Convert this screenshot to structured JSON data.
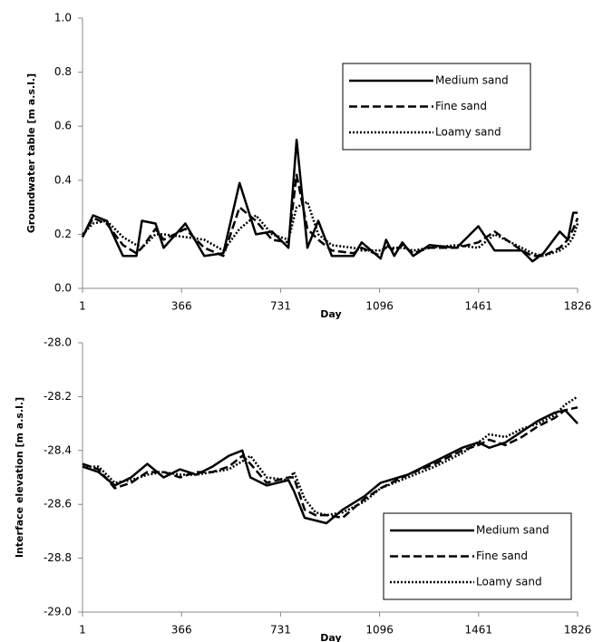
{
  "chart_data": [
    {
      "type": "line",
      "xlabel": "Day",
      "ylabel": "Groundwater table [m a.s.l.]",
      "xlim": [
        1,
        1826
      ],
      "xticks": [
        1,
        366,
        731,
        1096,
        1461,
        1826
      ],
      "ylim": [
        0,
        1
      ],
      "yticks": [
        {
          "value": 0,
          "label": "0.0"
        },
        0.2,
        0.4,
        0.6,
        0.8,
        {
          "value": 1,
          "label": "1.0"
        }
      ],
      "legend": "upper right",
      "x": [
        1,
        40,
        90,
        150,
        200,
        220,
        270,
        300,
        380,
        450,
        520,
        580,
        640,
        700,
        760,
        790,
        830,
        870,
        920,
        1000,
        1030,
        1100,
        1120,
        1150,
        1180,
        1220,
        1280,
        1380,
        1460,
        1520,
        1620,
        1660,
        1700,
        1760,
        1790,
        1810,
        1826
      ],
      "series": [
        {
          "name": "Medium sand",
          "color": "#000000",
          "style": "solid",
          "values": [
            0.19,
            0.27,
            0.25,
            0.12,
            0.12,
            0.25,
            0.24,
            0.15,
            0.24,
            0.12,
            0.13,
            0.39,
            0.2,
            0.21,
            0.15,
            0.55,
            0.15,
            0.25,
            0.12,
            0.12,
            0.17,
            0.11,
            0.18,
            0.12,
            0.17,
            0.12,
            0.16,
            0.15,
            0.23,
            0.14,
            0.14,
            0.1,
            0.13,
            0.21,
            0.18,
            0.28,
            0.28
          ]
        },
        {
          "name": "Fine sand",
          "color": "#000000",
          "style": "dashed",
          "values": [
            0.19,
            0.26,
            0.24,
            0.16,
            0.13,
            0.15,
            0.22,
            0.18,
            0.22,
            0.15,
            0.12,
            0.3,
            0.25,
            0.18,
            0.17,
            0.42,
            0.22,
            0.18,
            0.14,
            0.13,
            0.15,
            0.12,
            0.16,
            0.14,
            0.16,
            0.13,
            0.15,
            0.15,
            0.17,
            0.21,
            0.14,
            0.12,
            0.12,
            0.15,
            0.18,
            0.22,
            0.26
          ]
        },
        {
          "name": "Loamy sand",
          "color": "#000000",
          "style": "dotted",
          "values": [
            0.2,
            0.24,
            0.25,
            0.19,
            0.16,
            0.15,
            0.2,
            0.2,
            0.19,
            0.18,
            0.14,
            0.22,
            0.27,
            0.2,
            0.18,
            0.3,
            0.32,
            0.2,
            0.16,
            0.15,
            0.14,
            0.14,
            0.15,
            0.15,
            0.15,
            0.14,
            0.15,
            0.16,
            0.15,
            0.2,
            0.15,
            0.13,
            0.12,
            0.14,
            0.16,
            0.19,
            0.24
          ]
        }
      ]
    },
    {
      "type": "line",
      "xlabel": "Day",
      "ylabel": "Interface elevation [m a.s.l.]",
      "xlim": [
        1,
        1826
      ],
      "xticks": [
        1,
        366,
        731,
        1096,
        1461,
        1826
      ],
      "ylim": [
        -29,
        -28
      ],
      "yticks": [
        {
          "value": -29,
          "label": "-29.0"
        },
        -28.8,
        -28.6,
        -28.4,
        -28.2,
        {
          "value": -28,
          "label": "-28.0"
        }
      ],
      "legend": "lower right",
      "x": [
        1,
        60,
        120,
        180,
        240,
        300,
        360,
        420,
        480,
        540,
        590,
        620,
        680,
        760,
        780,
        820,
        860,
        900,
        960,
        1040,
        1100,
        1200,
        1300,
        1400,
        1460,
        1500,
        1560,
        1620,
        1680,
        1740,
        1780,
        1826
      ],
      "series": [
        {
          "name": "Medium sand",
          "color": "#000000",
          "style": "solid",
          "values": [
            -28.46,
            -28.48,
            -28.53,
            -28.5,
            -28.45,
            -28.5,
            -28.47,
            -28.49,
            -28.46,
            -28.42,
            -28.4,
            -28.5,
            -28.53,
            -28.51,
            -28.55,
            -28.65,
            -28.66,
            -28.67,
            -28.62,
            -28.57,
            -28.52,
            -28.49,
            -28.44,
            -28.39,
            -28.37,
            -28.39,
            -28.37,
            -28.33,
            -28.29,
            -28.26,
            -28.25,
            -28.3
          ]
        },
        {
          "name": "Fine sand",
          "color": "#000000",
          "style": "dashed",
          "values": [
            -28.45,
            -28.47,
            -28.54,
            -28.52,
            -28.48,
            -28.48,
            -28.5,
            -28.48,
            -28.48,
            -28.46,
            -28.42,
            -28.45,
            -28.52,
            -28.5,
            -28.5,
            -28.62,
            -28.64,
            -28.64,
            -28.65,
            -28.58,
            -28.54,
            -28.49,
            -28.45,
            -28.4,
            -28.38,
            -28.36,
            -28.38,
            -28.35,
            -28.31,
            -28.28,
            -28.25,
            -28.24
          ]
        },
        {
          "name": "Loamy sand",
          "color": "#000000",
          "style": "dotted",
          "values": [
            -28.46,
            -28.46,
            -28.52,
            -28.51,
            -28.49,
            -28.48,
            -28.49,
            -28.49,
            -28.48,
            -28.47,
            -28.44,
            -28.42,
            -28.5,
            -28.51,
            -28.48,
            -28.58,
            -28.63,
            -28.64,
            -28.63,
            -28.59,
            -28.54,
            -28.5,
            -28.46,
            -28.41,
            -28.37,
            -28.34,
            -28.35,
            -28.32,
            -28.3,
            -28.27,
            -28.23,
            -28.2
          ]
        }
      ]
    }
  ]
}
